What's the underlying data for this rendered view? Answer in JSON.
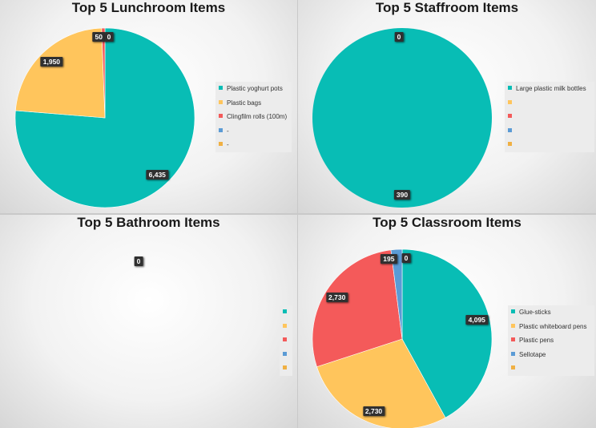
{
  "colors": [
    "#08BDB5",
    "#FFC55C",
    "#F45A5A",
    "#5B9BD5",
    "#F0B043"
  ],
  "chart_data": [
    {
      "type": "pie",
      "title": "Top 5 Lunchroom Items",
      "categories": [
        "Plastic yoghurt pots",
        "Plastic bags",
        "Clingfilm rolls (100m)",
        "-",
        "-"
      ],
      "values": [
        6435,
        1950,
        50,
        0,
        0
      ],
      "data_labels": [
        "6,435",
        "1,950",
        "50",
        "0",
        ""
      ],
      "legend": "right"
    },
    {
      "type": "pie",
      "title": "Top 5 Staffroom Items",
      "categories": [
        "Large plastic milk bottles",
        "",
        "",
        "",
        ""
      ],
      "values": [
        390,
        0,
        0,
        0,
        0
      ],
      "data_labels": [
        "390",
        "0",
        "",
        "",
        ""
      ],
      "legend": "right"
    },
    {
      "type": "pie",
      "title": "Top 5 Bathroom Items",
      "categories": [
        "",
        "",
        "",
        "",
        ""
      ],
      "values": [
        0,
        0,
        0,
        0,
        0
      ],
      "data_labels": [
        "0",
        "",
        "",
        "",
        ""
      ],
      "legend": "right"
    },
    {
      "type": "pie",
      "title": "Top 5 Classroom Items",
      "categories": [
        "Glue-sticks",
        "Plastic whiteboard pens",
        "Plastic pens",
        "Sellotape",
        ""
      ],
      "values": [
        4095,
        2730,
        2730,
        195,
        0
      ],
      "data_labels": [
        "4,095",
        "2,730",
        "2,730",
        "195",
        "0"
      ],
      "legend": "right"
    }
  ]
}
